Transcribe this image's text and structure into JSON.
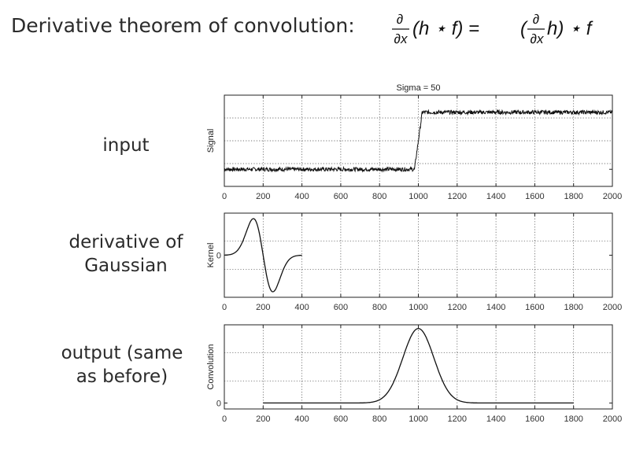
{
  "heading": "Derivative theorem of convolution:",
  "formula": {
    "lhs_op": "∂",
    "lhs_var": "∂x",
    "lhs_body": "(h ⋆ f) =",
    "rhs_open": "(",
    "rhs_op": "∂",
    "rhs_var": "∂x",
    "rhs_body": "h) ⋆ f"
  },
  "labels": {
    "input": "input",
    "kernel_line1": "derivative of",
    "kernel_line2": "Gaussian",
    "output_line1": "output (same",
    "output_line2": "as before)"
  },
  "chart_data": [
    {
      "type": "line",
      "title": "Sigma = 50",
      "xlabel": "",
      "ylabel": "Signal",
      "xlim": [
        0,
        2000
      ],
      "ylim": [
        -0.3,
        1.3
      ],
      "x_ticks": [
        0,
        200,
        400,
        600,
        800,
        1000,
        1200,
        1400,
        1600,
        1800,
        2000
      ],
      "y_ticks": [
        0
      ],
      "y_tick_labels": [],
      "grid": true,
      "series": [
        {
          "description": "noisy step",
          "x": [
            0,
            980,
            1020,
            2000
          ],
          "y": [
            0,
            0,
            1,
            1
          ],
          "noise": 0.035
        }
      ]
    },
    {
      "type": "line",
      "title": "",
      "xlabel": "",
      "ylabel": "Kernel",
      "xlim": [
        0,
        2000
      ],
      "ylim": [
        -1.15,
        1.15
      ],
      "x_ticks": [
        0,
        200,
        400,
        600,
        800,
        1000,
        1200,
        1400,
        1600,
        1800,
        2000
      ],
      "y_ticks": [
        0
      ],
      "y_tick_labels": [
        "0"
      ],
      "grid": true,
      "series": [
        {
          "description": "derivative of Gaussian kernel",
          "x_range": [
            0,
            400
          ],
          "center": 200,
          "sigma": 50
        }
      ]
    },
    {
      "type": "line",
      "title": "",
      "xlabel": "",
      "ylabel": "Convolution",
      "xlim": [
        0,
        2000
      ],
      "ylim": [
        -0.08,
        1.05
      ],
      "x_ticks": [
        0,
        200,
        400,
        600,
        800,
        1000,
        1200,
        1400,
        1600,
        1800,
        2000
      ],
      "y_ticks": [
        0
      ],
      "y_tick_labels": [
        "0"
      ],
      "grid": true,
      "series": [
        {
          "description": "Gaussian-shaped response",
          "x_range": [
            200,
            1800
          ],
          "center": 1000,
          "sigma": 80
        }
      ]
    }
  ]
}
